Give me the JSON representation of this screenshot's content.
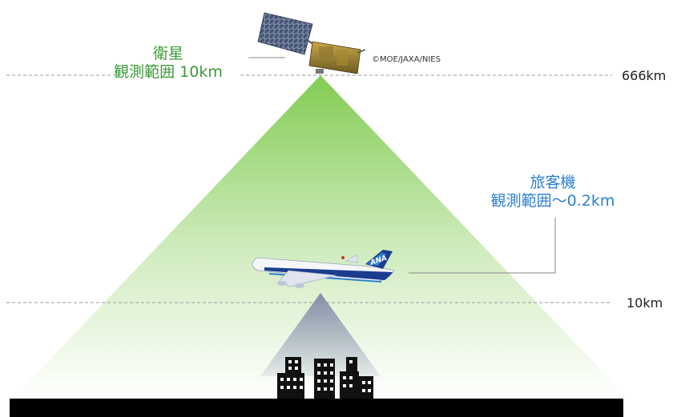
{
  "colors": {
    "satellite_accent": "#3b9a3a",
    "aircraft_accent": "#2f7fd0",
    "satellite_cone": "#7cc94a",
    "aircraft_cone": "#7f8aa8",
    "ground": "#000000",
    "dashed_line": "#9a9a9a",
    "building": "#111111"
  },
  "satellite": {
    "name": "衛星",
    "range": "観測範囲 10km",
    "credit": "©MOE/JAXA/NIES",
    "icon": "satellite-icon"
  },
  "aircraft": {
    "name": "旅客機",
    "range": "観測範囲～0.2km",
    "livery": "ANA",
    "icon": "airplane-icon"
  },
  "altitudes": {
    "satellite": "666km",
    "aircraft": "10km"
  },
  "ground": {
    "icon": "buildings-icon"
  }
}
